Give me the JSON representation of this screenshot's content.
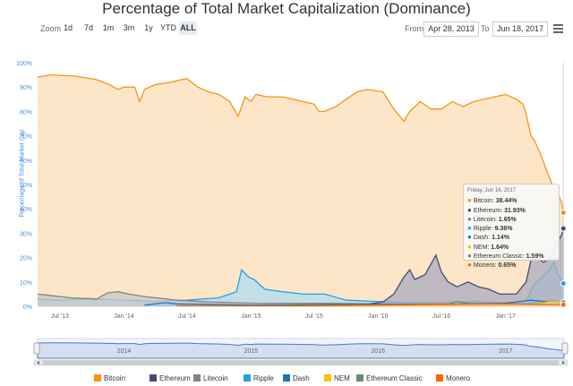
{
  "title": "Percentage of Total Market Capitalization (Dominance)",
  "toolbar": {
    "zoom_label": "Zoom",
    "zoom_buttons": [
      "1d",
      "7d",
      "1m",
      "3m",
      "1y",
      "YTD",
      "ALL"
    ],
    "active_zoom": "ALL",
    "from_label": "From",
    "from_value": "Apr 28, 2013",
    "to_label": "To",
    "to_value": "Jun 18, 2017",
    "menu_icon": "hamburger-menu-icon"
  },
  "tooltip": {
    "header": "Friday, Jun 16, 2017",
    "rows": [
      {
        "name": "Bitcoin",
        "value": "38.44%",
        "color": "#f7931a"
      },
      {
        "name": "Ethereum",
        "value": "31.93%",
        "color": "#454a75"
      },
      {
        "name": "Litecoin",
        "value": "1.65%",
        "color": "#838383"
      },
      {
        "name": "Ripple",
        "value": "9.36%",
        "color": "#27a2db"
      },
      {
        "name": "Dash",
        "value": "1.14%",
        "color": "#1c75bc"
      },
      {
        "name": "NEM",
        "value": "1.64%",
        "color": "#f3c300"
      },
      {
        "name": "Ethereum Classic",
        "value": "1.59%",
        "color": "#669073"
      },
      {
        "name": "Monero",
        "value": "0.65%",
        "color": "#ff6600"
      }
    ]
  },
  "chart_data": {
    "type": "area",
    "title": "Percentage of Total Market Capitalization (Dominance)",
    "ylabel": "Percentage of Total Market Cap",
    "ylim": [
      0,
      100
    ],
    "yticks": [
      "0%",
      "10%",
      "20%",
      "30%",
      "40%",
      "50%",
      "60%",
      "70%",
      "80%",
      "90%",
      "100%"
    ],
    "xlim": [
      "2013-04-28",
      "2017-06-18"
    ],
    "xticks": [
      {
        "date": "2013-07-01",
        "label": "Jul '13"
      },
      {
        "date": "2014-01-01",
        "label": "Jan '14"
      },
      {
        "date": "2014-07-01",
        "label": "Jul '14"
      },
      {
        "date": "2015-01-01",
        "label": "Jan '15"
      },
      {
        "date": "2015-07-01",
        "label": "Jul '15"
      },
      {
        "date": "2016-01-01",
        "label": "Jan '16"
      },
      {
        "date": "2016-07-01",
        "label": "Jul '16"
      },
      {
        "date": "2017-01-01",
        "label": "Jan '17"
      }
    ],
    "navigator_labels": [
      {
        "date": "2014-01-01",
        "label": "2014"
      },
      {
        "date": "2015-01-01",
        "label": "2015"
      },
      {
        "date": "2016-01-01",
        "label": "2016"
      },
      {
        "date": "2017-01-01",
        "label": "2017"
      }
    ],
    "grid": false,
    "legend_position": "bottom",
    "series": [
      {
        "name": "Bitcoin",
        "color": "#f7931a",
        "fill": "#fcddb5",
        "points": [
          [
            "2013-04-28",
            94
          ],
          [
            "2013-06-01",
            95
          ],
          [
            "2013-08-15",
            94.5
          ],
          [
            "2013-10-15",
            93
          ],
          [
            "2013-11-20",
            91
          ],
          [
            "2013-12-15",
            89
          ],
          [
            "2014-01-01",
            90
          ],
          [
            "2014-02-01",
            90
          ],
          [
            "2014-02-15",
            84
          ],
          [
            "2014-03-01",
            89
          ],
          [
            "2014-04-01",
            91
          ],
          [
            "2014-05-15",
            92
          ],
          [
            "2014-06-15",
            93
          ],
          [
            "2014-07-01",
            93.5
          ],
          [
            "2014-08-01",
            90
          ],
          [
            "2014-09-01",
            88
          ],
          [
            "2014-10-01",
            87
          ],
          [
            "2014-11-01",
            84
          ],
          [
            "2014-11-25",
            78
          ],
          [
            "2014-12-15",
            86
          ],
          [
            "2015-01-01",
            84
          ],
          [
            "2015-01-15",
            87
          ],
          [
            "2015-02-15",
            86
          ],
          [
            "2015-04-01",
            86
          ],
          [
            "2015-05-01",
            85
          ],
          [
            "2015-06-01",
            84
          ],
          [
            "2015-07-01",
            83
          ],
          [
            "2015-07-15",
            80
          ],
          [
            "2015-08-01",
            80
          ],
          [
            "2015-09-01",
            82
          ],
          [
            "2015-10-01",
            85
          ],
          [
            "2015-11-01",
            88
          ],
          [
            "2015-12-01",
            89
          ],
          [
            "2016-01-15",
            88
          ],
          [
            "2016-02-15",
            81
          ],
          [
            "2016-03-15",
            76
          ],
          [
            "2016-04-01",
            80
          ],
          [
            "2016-05-01",
            84
          ],
          [
            "2016-06-01",
            81
          ],
          [
            "2016-07-01",
            81
          ],
          [
            "2016-08-01",
            84
          ],
          [
            "2016-09-01",
            82
          ],
          [
            "2016-10-01",
            84
          ],
          [
            "2016-11-01",
            85
          ],
          [
            "2016-12-01",
            86
          ],
          [
            "2017-01-01",
            87
          ],
          [
            "2017-02-01",
            85
          ],
          [
            "2017-02-20",
            83
          ],
          [
            "2017-03-01",
            79
          ],
          [
            "2017-03-15",
            70
          ],
          [
            "2017-03-25",
            68
          ],
          [
            "2017-04-10",
            63
          ],
          [
            "2017-05-01",
            55
          ],
          [
            "2017-05-15",
            50
          ],
          [
            "2017-06-01",
            46
          ],
          [
            "2017-06-10",
            43
          ],
          [
            "2017-06-16",
            38.44
          ],
          [
            "2017-06-18",
            38
          ]
        ]
      },
      {
        "name": "Ethereum",
        "color": "#454a75",
        "fill": "#a9abbf",
        "points": [
          [
            "2015-08-07",
            0.2
          ],
          [
            "2015-12-01",
            0.8
          ],
          [
            "2016-01-15",
            1.8
          ],
          [
            "2016-02-15",
            5
          ],
          [
            "2016-03-15",
            12
          ],
          [
            "2016-04-01",
            15
          ],
          [
            "2016-04-15",
            11
          ],
          [
            "2016-05-15",
            13
          ],
          [
            "2016-06-15",
            21
          ],
          [
            "2016-07-01",
            14
          ],
          [
            "2016-07-20",
            10
          ],
          [
            "2016-08-15",
            8
          ],
          [
            "2016-09-15",
            10
          ],
          [
            "2016-10-15",
            8
          ],
          [
            "2016-11-15",
            7
          ],
          [
            "2016-12-15",
            5
          ],
          [
            "2017-01-01",
            5
          ],
          [
            "2017-02-01",
            5
          ],
          [
            "2017-03-01",
            10
          ],
          [
            "2017-03-15",
            19
          ],
          [
            "2017-04-01",
            20
          ],
          [
            "2017-04-20",
            18
          ],
          [
            "2017-05-10",
            20
          ],
          [
            "2017-05-25",
            25
          ],
          [
            "2017-06-10",
            29
          ],
          [
            "2017-06-16",
            31.93
          ],
          [
            "2017-06-18",
            32
          ]
        ]
      },
      {
        "name": "Litecoin",
        "color": "#838383",
        "fill": "#c7c7c7",
        "points": [
          [
            "2013-04-28",
            5
          ],
          [
            "2013-06-01",
            4.5
          ],
          [
            "2013-08-01",
            3.5
          ],
          [
            "2013-10-15",
            3
          ],
          [
            "2013-11-15",
            5.5
          ],
          [
            "2013-12-15",
            6
          ],
          [
            "2014-01-15",
            5
          ],
          [
            "2014-03-01",
            4
          ],
          [
            "2014-06-01",
            2.5
          ],
          [
            "2014-09-01",
            1.8
          ],
          [
            "2015-01-01",
            1.3
          ],
          [
            "2015-07-01",
            1.2
          ],
          [
            "2016-01-01",
            1
          ],
          [
            "2016-07-01",
            1
          ],
          [
            "2017-01-01",
            1
          ],
          [
            "2017-04-01",
            1.6
          ],
          [
            "2017-05-15",
            2.5
          ],
          [
            "2017-06-16",
            1.65
          ],
          [
            "2017-06-18",
            1.6
          ]
        ]
      },
      {
        "name": "Ripple",
        "color": "#27a2db",
        "fill": "#aedcf3",
        "points": [
          [
            "2013-04-28",
            3
          ],
          [
            "2013-07-01",
            2.5
          ],
          [
            "2013-10-01",
            3
          ],
          [
            "2014-01-01",
            2.5
          ],
          [
            "2014-04-01",
            2
          ],
          [
            "2014-07-01",
            2.5
          ],
          [
            "2014-10-01",
            3.5
          ],
          [
            "2014-11-20",
            6
          ],
          [
            "2014-12-05",
            15
          ],
          [
            "2014-12-25",
            12
          ],
          [
            "2015-01-10",
            11
          ],
          [
            "2015-02-10",
            7
          ],
          [
            "2015-04-01",
            6
          ],
          [
            "2015-06-01",
            5
          ],
          [
            "2015-08-01",
            5
          ],
          [
            "2015-10-01",
            2.5
          ],
          [
            "2016-01-01",
            2
          ],
          [
            "2016-04-01",
            1.5
          ],
          [
            "2016-07-01",
            1.5
          ],
          [
            "2016-10-01",
            2
          ],
          [
            "2017-01-01",
            1.5
          ],
          [
            "2017-03-01",
            2
          ],
          [
            "2017-03-20",
            8
          ],
          [
            "2017-04-01",
            10
          ],
          [
            "2017-05-01",
            14
          ],
          [
            "2017-05-20",
            18
          ],
          [
            "2017-06-01",
            13
          ],
          [
            "2017-06-16",
            9.36
          ],
          [
            "2017-06-18",
            9
          ]
        ]
      },
      {
        "name": "Dash",
        "color": "#1c75bc",
        "fill": "#9dc3e2",
        "points": [
          [
            "2014-03-01",
            0.5
          ],
          [
            "2014-05-01",
            1.5
          ],
          [
            "2014-06-01",
            1
          ],
          [
            "2015-01-01",
            0.5
          ],
          [
            "2016-01-01",
            0.8
          ],
          [
            "2016-07-01",
            0.8
          ],
          [
            "2017-01-01",
            1.2
          ],
          [
            "2017-03-15",
            2.5
          ],
          [
            "2017-06-16",
            1.14
          ],
          [
            "2017-06-18",
            1.1
          ]
        ]
      },
      {
        "name": "NEM",
        "color": "#f3c300",
        "fill": "#f9e599",
        "points": [
          [
            "2015-04-01",
            0.1
          ],
          [
            "2016-01-01",
            0.1
          ],
          [
            "2017-01-01",
            0.2
          ],
          [
            "2017-04-01",
            1
          ],
          [
            "2017-05-15",
            2
          ],
          [
            "2017-06-16",
            1.64
          ],
          [
            "2017-06-18",
            1.6
          ]
        ]
      },
      {
        "name": "Ethereum Classic",
        "color": "#669073",
        "fill": "#b8cbbd",
        "points": [
          [
            "2016-07-25",
            1
          ],
          [
            "2016-08-15",
            2
          ],
          [
            "2016-10-01",
            0.8
          ],
          [
            "2017-01-01",
            0.6
          ],
          [
            "2017-04-01",
            1.5
          ],
          [
            "2017-06-16",
            1.59
          ],
          [
            "2017-06-18",
            1.5
          ]
        ]
      },
      {
        "name": "Monero",
        "color": "#ff6600",
        "fill": "#ffc299",
        "points": [
          [
            "2014-06-01",
            0.2
          ],
          [
            "2015-06-01",
            0.2
          ],
          [
            "2016-08-01",
            0.8
          ],
          [
            "2017-01-01",
            1
          ],
          [
            "2017-06-16",
            0.65
          ],
          [
            "2017-06-18",
            0.6
          ]
        ]
      }
    ]
  }
}
